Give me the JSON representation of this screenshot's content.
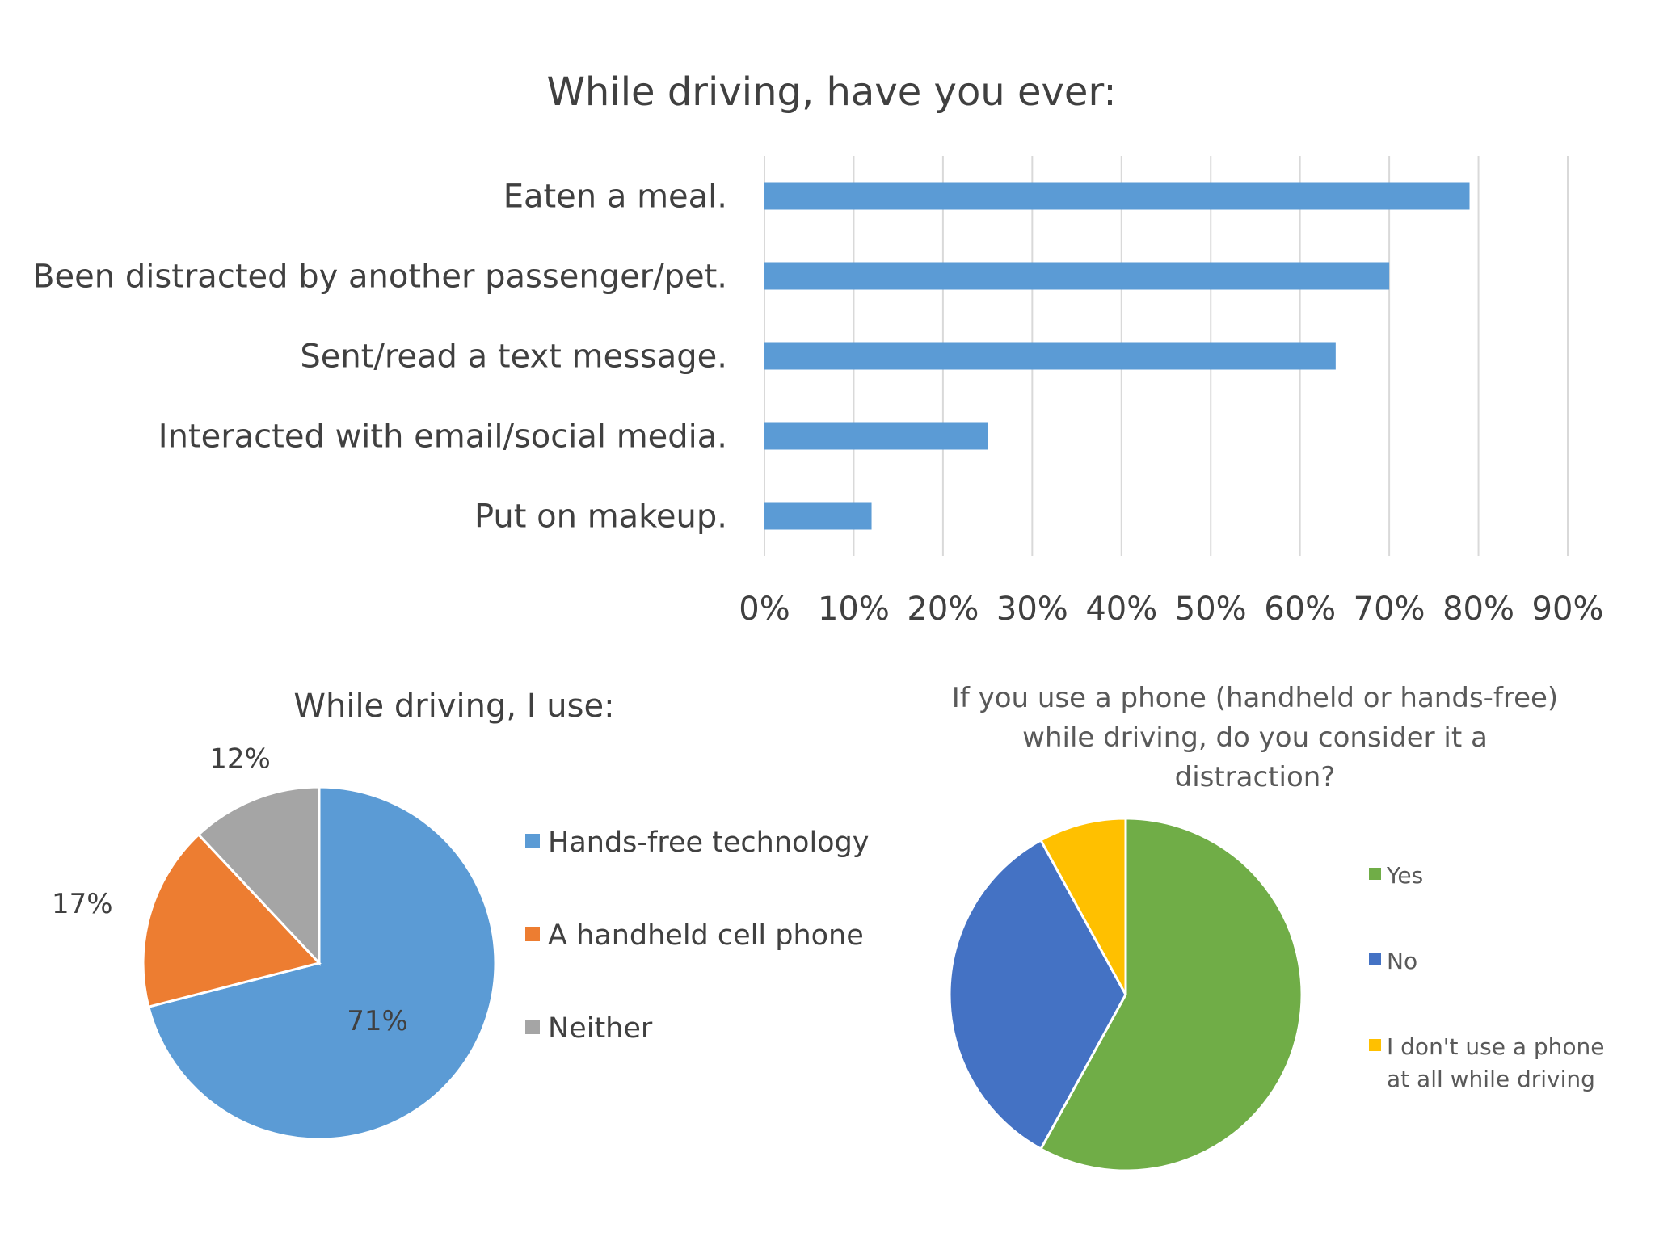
{
  "chart_data": [
    {
      "type": "bar",
      "orientation": "horizontal",
      "title": "While driving, have you ever:",
      "categories": [
        "Eaten a meal.",
        "Been distracted by another passenger/pet.",
        "Sent/read a text message.",
        "Interacted with email/social media.",
        "Put on makeup."
      ],
      "values": [
        79,
        70,
        64,
        25,
        12
      ],
      "xlim": [
        0,
        90
      ],
      "xticks": [
        "0%",
        "10%",
        "20%",
        "30%",
        "40%",
        "50%",
        "60%",
        "70%",
        "80%",
        "90%"
      ],
      "grid": true,
      "color": "#5b9bd5"
    },
    {
      "type": "pie",
      "title": "While driving, I use:",
      "labels": [
        "Hands-free technology",
        "A handheld cell phone",
        "Neither"
      ],
      "values": [
        71,
        17,
        12
      ],
      "data_labels": [
        "71%",
        "17%",
        "12%"
      ],
      "colors": [
        "#5b9bd5",
        "#ed7d31",
        "#a5a5a5"
      ],
      "legend": "right"
    },
    {
      "type": "pie",
      "title_lines": [
        "If you use a phone (handheld or hands-free)",
        "while driving, do you consider it a",
        "distraction?"
      ],
      "labels": [
        "Yes",
        "No",
        "I don't use a phone at all while driving"
      ],
      "legend_lines": [
        [
          "Yes"
        ],
        [
          "No"
        ],
        [
          "I don't use a phone",
          "at all while driving"
        ]
      ],
      "values": [
        58,
        34,
        8
      ],
      "colors": [
        "#70ad47",
        "#4472c4",
        "#ffc000"
      ],
      "legend": "right"
    }
  ]
}
